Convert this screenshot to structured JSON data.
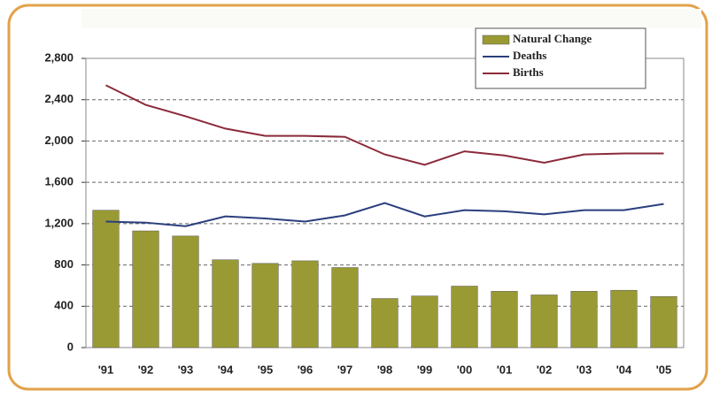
{
  "chart_data": {
    "type": "bar",
    "categories": [
      "'91",
      "'92",
      "'93",
      "'94",
      "'95",
      "'96",
      "'97",
      "'98",
      "'99",
      "'00",
      "'01",
      "'02",
      "'03",
      "'04",
      "'05"
    ],
    "series": [
      {
        "name": "Natural Change",
        "type": "bar",
        "color": "#9a9a34",
        "values": [
          1330,
          1130,
          1080,
          850,
          815,
          840,
          775,
          475,
          500,
          595,
          545,
          510,
          545,
          555,
          495
        ]
      },
      {
        "name": "Deaths",
        "type": "line",
        "color": "#2b3f7e",
        "values": [
          1220,
          1210,
          1175,
          1270,
          1250,
          1220,
          1280,
          1400,
          1270,
          1330,
          1320,
          1290,
          1330,
          1330,
          1390
        ]
      },
      {
        "name": "Births",
        "type": "line",
        "color": "#8b2a3a",
        "values": [
          2540,
          2350,
          2240,
          2120,
          2050,
          2050,
          2040,
          1870,
          1770,
          1900,
          1860,
          1790,
          1870,
          1880,
          1880
        ]
      }
    ],
    "ylim": [
      0,
      2800
    ],
    "yticks": [
      0,
      400,
      800,
      {
        "value": 1200,
        "label": "1,200"
      },
      {
        "value": 1600,
        "label": "1,600"
      },
      {
        "value": 2000,
        "label": "2,000"
      },
      {
        "value": 2400,
        "label": "2,400"
      },
      {
        "value": 2800,
        "label": "2,800"
      }
    ],
    "grid": true,
    "legend": "top-right"
  }
}
